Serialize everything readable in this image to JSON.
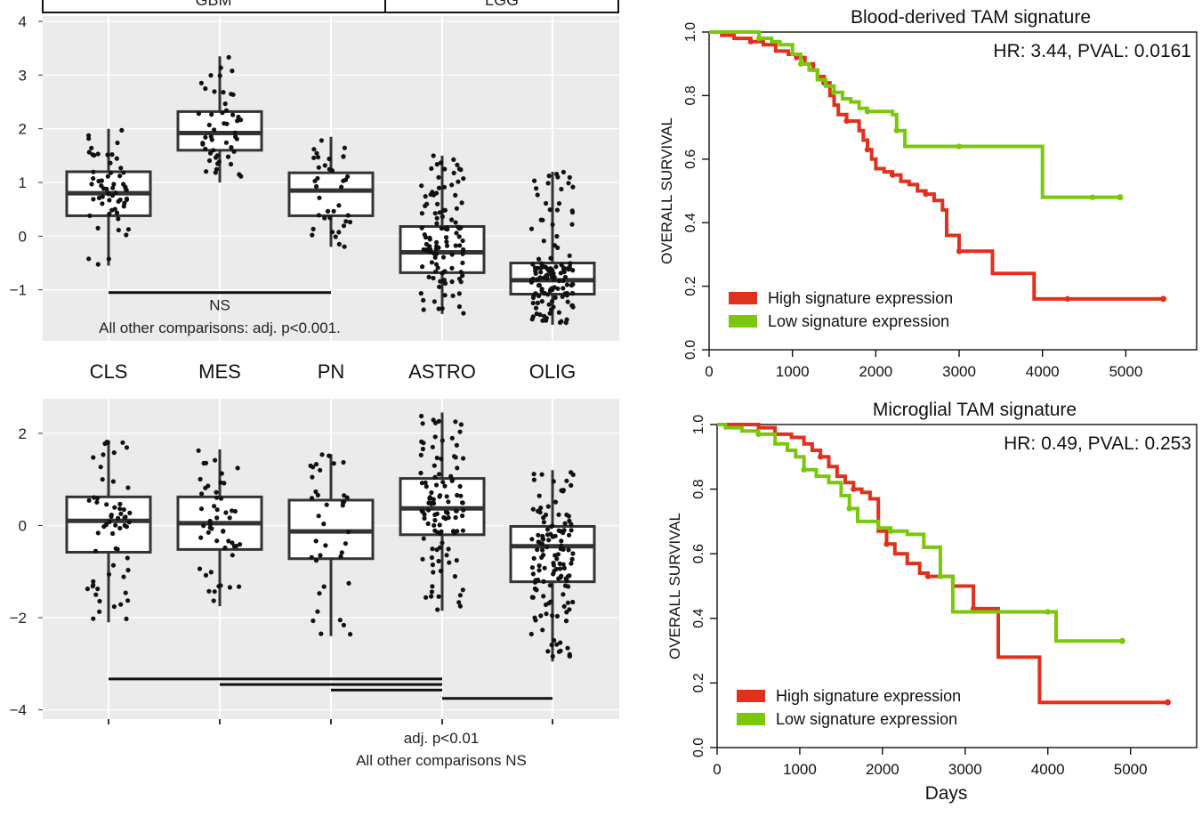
{
  "boxplots": {
    "strip_labels": [
      "GBM",
      "LGG"
    ],
    "categories": [
      "CLS",
      "MES",
      "PN",
      "ASTRO",
      "OLIG"
    ],
    "top": {
      "yticks": [
        -1,
        0,
        1,
        2,
        3,
        4
      ],
      "ylim": [
        -1.95,
        4.1
      ],
      "ns_label": "NS",
      "note": "All other comparisons: adj. p<0.001.",
      "boxes": [
        {
          "category": "CLS",
          "q1": 0.38,
          "median": 0.8,
          "q3": 1.2,
          "whisker_low": -0.55,
          "whisker_high": 2.0
        },
        {
          "category": "MES",
          "q1": 1.6,
          "median": 1.92,
          "q3": 2.32,
          "whisker_low": 1.0,
          "whisker_high": 3.35
        },
        {
          "category": "PN",
          "q1": 0.38,
          "median": 0.85,
          "q3": 1.18,
          "whisker_low": -0.2,
          "whisker_high": 1.85
        },
        {
          "category": "ASTRO",
          "q1": -0.68,
          "median": -0.3,
          "q3": 0.18,
          "whisker_low": -1.45,
          "whisker_high": 1.5
        },
        {
          "category": "OLIG",
          "q1": -1.08,
          "median": -0.82,
          "q3": -0.5,
          "whisker_low": -1.65,
          "whisker_high": 1.2
        }
      ],
      "comparison_lines": [
        {
          "from": "CLS",
          "to": "PN",
          "y": -1.05
        }
      ]
    },
    "bottom": {
      "yticks": [
        -4,
        -2,
        0,
        2
      ],
      "ylim": [
        -4.2,
        2.75
      ],
      "note_line1": "adj. p<0.01",
      "note_line2": "All other comparisons NS",
      "boxes": [
        {
          "category": "CLS",
          "q1": -0.58,
          "median": 0.1,
          "q3": 0.62,
          "whisker_low": -2.1,
          "whisker_high": 1.85
        },
        {
          "category": "MES",
          "q1": -0.52,
          "median": 0.05,
          "q3": 0.62,
          "whisker_low": -1.75,
          "whisker_high": 1.65
        },
        {
          "category": "PN",
          "q1": -0.72,
          "median": -0.13,
          "q3": 0.55,
          "whisker_low": -2.4,
          "whisker_high": 1.55
        },
        {
          "category": "ASTRO",
          "q1": -0.2,
          "median": 0.37,
          "q3": 1.02,
          "whisker_low": -1.85,
          "whisker_high": 2.45
        },
        {
          "category": "OLIG",
          "q1": -1.22,
          "median": -0.45,
          "q3": -0.02,
          "whisker_low": -2.95,
          "whisker_high": 1.2
        }
      ],
      "comparison_lines": [
        {
          "from": "CLS",
          "to": "ASTRO",
          "y": -3.33
        },
        {
          "from": "MES",
          "to": "ASTRO",
          "y": -3.45
        },
        {
          "from": "PN",
          "to": "ASTRO",
          "y": -3.57
        },
        {
          "from": "ASTRO",
          "to": "OLIG",
          "y": -3.75
        }
      ]
    }
  },
  "survival": {
    "top": {
      "title": "Blood-derived TAM signature",
      "stats": "HR: 3.44, PVAL: 0.0161",
      "ylabel": "OVERALL SURVIVAL",
      "legend": [
        "High signature expression",
        "Low signature expression"
      ]
    },
    "bottom": {
      "title": "Microglial TAM signature",
      "stats": "HR: 0.49, PVAL: 0.253",
      "ylabel": "OVERALL SURVIVAL",
      "xlabel": "Days",
      "legend": [
        "High signature expression",
        "Low signature expression"
      ]
    },
    "xticks": [
      "0",
      "1000",
      "2000",
      "3000",
      "4000",
      "5000"
    ],
    "yticks": [
      "0.0",
      "0.2",
      "0.4",
      "0.6",
      "0.8",
      "1.0"
    ]
  },
  "chart_data": [
    {
      "type": "box",
      "title": "",
      "categories": [
        "CLS",
        "MES",
        "PN",
        "ASTRO",
        "OLIG"
      ],
      "groups": {
        "GBM": [
          "CLS",
          "MES",
          "PN"
        ],
        "LGG": [
          "ASTRO",
          "OLIG"
        ]
      },
      "ylim": [
        -1.95,
        4.1
      ],
      "medians": [
        0.8,
        1.92,
        0.85,
        -0.3,
        -0.82
      ],
      "annotations": [
        "NS",
        "All other comparisons: adj. p<0.001."
      ]
    },
    {
      "type": "box",
      "title": "",
      "categories": [
        "CLS",
        "MES",
        "PN",
        "ASTRO",
        "OLIG"
      ],
      "ylim": [
        -4.2,
        2.75
      ],
      "medians": [
        0.1,
        0.05,
        -0.13,
        0.37,
        -0.45
      ],
      "annotations": [
        "adj. p<0.01",
        "All other comparisons NS"
      ]
    },
    {
      "type": "line",
      "title": "Blood-derived TAM signature",
      "ylabel": "OVERALL SURVIVAL",
      "xlim": [
        0,
        5500
      ],
      "ylim": [
        0,
        1
      ],
      "series": [
        {
          "name": "High signature expression",
          "color": "#e0311c",
          "x": [
            0,
            150,
            300,
            500,
            650,
            800,
            950,
            1050,
            1150,
            1250,
            1300,
            1380,
            1450,
            1500,
            1550,
            1650,
            1750,
            1800,
            1850,
            1900,
            1950,
            2000,
            2100,
            2200,
            2300,
            2400,
            2500,
            2600,
            2700,
            2800,
            2850,
            3000,
            3400,
            3800,
            3900,
            4300,
            5450
          ],
          "y": [
            1.0,
            0.99,
            0.98,
            0.97,
            0.96,
            0.94,
            0.93,
            0.92,
            0.9,
            0.88,
            0.86,
            0.84,
            0.8,
            0.77,
            0.74,
            0.72,
            0.72,
            0.69,
            0.66,
            0.63,
            0.6,
            0.57,
            0.56,
            0.55,
            0.53,
            0.52,
            0.5,
            0.49,
            0.47,
            0.44,
            0.36,
            0.31,
            0.24,
            0.24,
            0.16,
            0.16,
            0.16
          ]
        },
        {
          "name": "Low signature expression",
          "color": "#7ac70c",
          "x": [
            0,
            200,
            500,
            600,
            750,
            850,
            1000,
            1100,
            1200,
            1300,
            1400,
            1500,
            1600,
            1700,
            1800,
            1900,
            2000,
            2100,
            2200,
            2250,
            2350,
            2500,
            2700,
            3000,
            3500,
            4000,
            4100,
            4600,
            4930
          ],
          "y": [
            1.0,
            1.0,
            1.0,
            0.98,
            0.97,
            0.96,
            0.93,
            0.9,
            0.88,
            0.85,
            0.83,
            0.81,
            0.79,
            0.78,
            0.76,
            0.75,
            0.75,
            0.75,
            0.74,
            0.69,
            0.64,
            0.64,
            0.64,
            0.64,
            0.64,
            0.48,
            0.48,
            0.48,
            0.48
          ]
        }
      ]
    },
    {
      "type": "line",
      "title": "Microglial TAM signature",
      "xlabel": "Days",
      "ylabel": "OVERALL SURVIVAL",
      "xlim": [
        0,
        5500
      ],
      "ylim": [
        0,
        1
      ],
      "series": [
        {
          "name": "High signature expression",
          "color": "#e0311c",
          "x": [
            0,
            300,
            500,
            700,
            900,
            1050,
            1150,
            1250,
            1350,
            1450,
            1550,
            1650,
            1750,
            1850,
            1950,
            2050,
            2150,
            2300,
            2450,
            2550,
            2650,
            2750,
            2850,
            3100,
            3400,
            3900,
            4200,
            5450
          ],
          "y": [
            1.0,
            1.0,
            0.99,
            0.97,
            0.96,
            0.94,
            0.92,
            0.9,
            0.87,
            0.84,
            0.82,
            0.8,
            0.79,
            0.77,
            0.67,
            0.63,
            0.6,
            0.57,
            0.54,
            0.53,
            0.53,
            0.53,
            0.5,
            0.43,
            0.28,
            0.14,
            0.14,
            0.14
          ]
        },
        {
          "name": "Low signature expression",
          "color": "#7ac70c",
          "x": [
            0,
            100,
            300,
            500,
            700,
            850,
            950,
            1050,
            1200,
            1350,
            1500,
            1600,
            1700,
            1850,
            1950,
            2100,
            2200,
            2300,
            2500,
            2700,
            2850,
            3100,
            3500,
            4000,
            4100,
            4600,
            4900
          ],
          "y": [
            1.0,
            0.99,
            0.98,
            0.97,
            0.94,
            0.92,
            0.9,
            0.86,
            0.84,
            0.82,
            0.78,
            0.74,
            0.7,
            0.7,
            0.68,
            0.67,
            0.67,
            0.66,
            0.62,
            0.53,
            0.42,
            0.42,
            0.42,
            0.42,
            0.33,
            0.33,
            0.33
          ]
        }
      ]
    }
  ]
}
